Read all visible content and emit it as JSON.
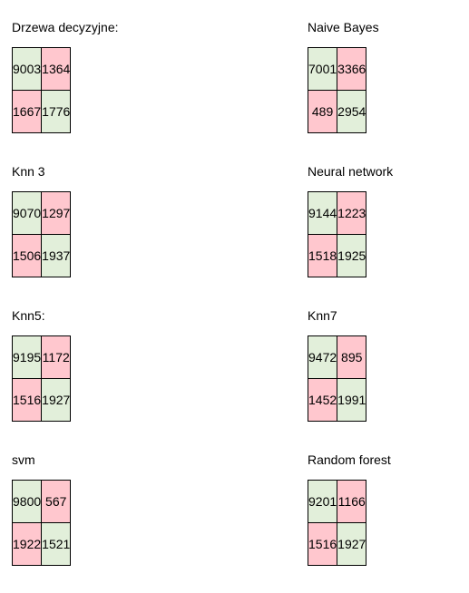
{
  "matrices": [
    {
      "title": "Drzewa decyzyjne:",
      "cells": [
        "9003",
        "1364",
        "1667",
        "1776"
      ]
    },
    {
      "title": "Naive Bayes",
      "cells": [
        "7001",
        "3366",
        "489",
        "2954"
      ]
    },
    {
      "title": "Knn 3",
      "cells": [
        "9070",
        "1297",
        "1506",
        "1937"
      ]
    },
    {
      "title": "Neural network",
      "cells": [
        "9144",
        "1223",
        "1518",
        "1925"
      ]
    },
    {
      "title": "Knn5:",
      "cells": [
        "9195",
        "1172",
        "1516",
        "1927"
      ]
    },
    {
      "title": "Knn7",
      "cells": [
        "9472",
        "895",
        "1452",
        "1991"
      ]
    },
    {
      "title": "svm",
      "cells": [
        "9800",
        "567",
        "1922",
        "1521"
      ]
    },
    {
      "title": "Random forest",
      "cells": [
        "9201",
        "1166",
        "1516",
        "1927"
      ]
    }
  ],
  "colors": {
    "correct_cell": "#e2efda",
    "wrong_cell": "#ffc7ce",
    "border": "#000000"
  }
}
